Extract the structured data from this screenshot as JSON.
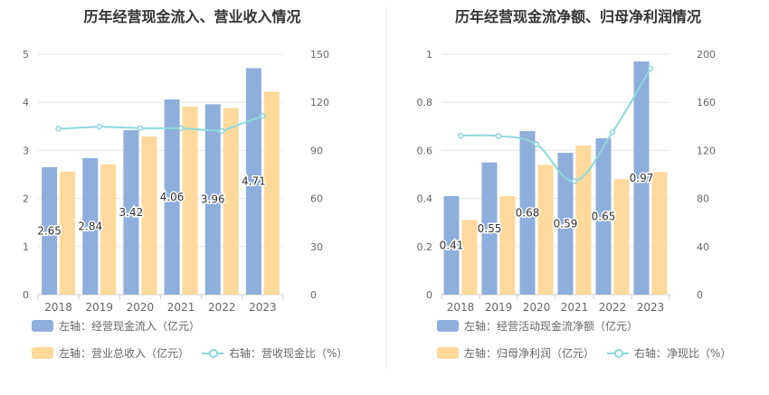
{
  "colors": {
    "bar_primary": "#8eaedb",
    "bar_secondary": "#ffd99b",
    "line": "#8cd8dc",
    "grid": "#e6e6e6",
    "axis_text": "#666666",
    "title": "#333333"
  },
  "chart_data": [
    {
      "type": "bar",
      "title": "历年经营现金流入、营业收入情况",
      "categories": [
        "2018",
        "2019",
        "2020",
        "2021",
        "2022",
        "2023"
      ],
      "y_left": {
        "range": [
          0,
          5
        ],
        "ticks": [
          "0",
          "1",
          "2",
          "3",
          "4",
          "5"
        ]
      },
      "y_right": {
        "range": [
          0,
          150
        ],
        "ticks": [
          "0",
          "30",
          "60",
          "90",
          "120",
          "150"
        ]
      },
      "series": [
        {
          "name": "左轴：经营现金流入（亿元）",
          "axis": "left",
          "kind": "bar",
          "values": [
            2.65,
            2.84,
            3.42,
            4.06,
            3.96,
            4.71
          ],
          "labels": [
            "2.65",
            "2.84",
            "3.42",
            "4.06",
            "3.96",
            "4.71"
          ]
        },
        {
          "name": "左轴：营业总收入（亿元）",
          "axis": "left",
          "kind": "bar",
          "values": [
            2.56,
            2.71,
            3.29,
            3.91,
            3.88,
            4.22
          ]
        },
        {
          "name": "右轴：营收现金比（%）",
          "axis": "right",
          "kind": "line",
          "values": [
            103.5,
            104.8,
            103.9,
            103.8,
            102.1,
            111.6
          ]
        }
      ]
    },
    {
      "type": "bar",
      "title": "历年经营现金流净额、归母净利润情况",
      "categories": [
        "2018",
        "2019",
        "2020",
        "2021",
        "2022",
        "2023"
      ],
      "y_left": {
        "range": [
          0,
          1
        ],
        "ticks": [
          "0",
          "0.2",
          "0.4",
          "0.6",
          "0.8",
          "1"
        ]
      },
      "y_right": {
        "range": [
          0,
          200
        ],
        "ticks": [
          "0",
          "40",
          "80",
          "120",
          "160",
          "200"
        ]
      },
      "series": [
        {
          "name": "左轴：经营活动现金流净额（亿元）",
          "axis": "left",
          "kind": "bar",
          "values": [
            0.41,
            0.55,
            0.68,
            0.59,
            0.65,
            0.97
          ],
          "labels": [
            "0.41",
            "0.55",
            "0.68",
            "0.59",
            "0.65",
            "0.97"
          ]
        },
        {
          "name": "左轴：归母净利润（亿元）",
          "axis": "left",
          "kind": "bar",
          "values": [
            0.31,
            0.41,
            0.54,
            0.62,
            0.48,
            0.51
          ]
        },
        {
          "name": "右轴：净现比（%）",
          "axis": "right",
          "kind": "line",
          "values": [
            132.3,
            132.0,
            125.0,
            94.5,
            135.2,
            188.1
          ]
        }
      ]
    }
  ]
}
